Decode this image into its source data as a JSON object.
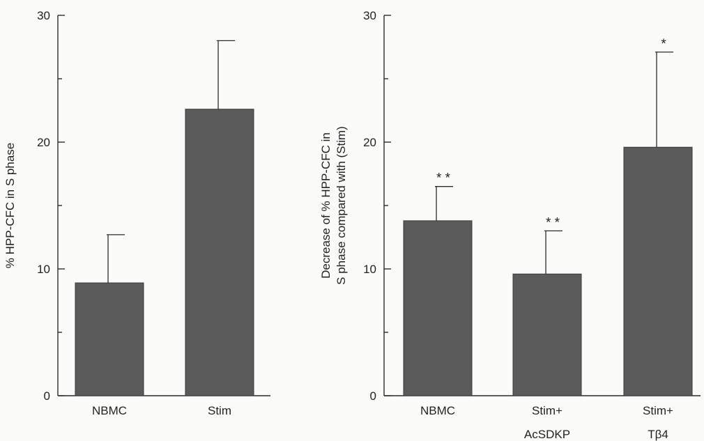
{
  "chart_data": [
    {
      "type": "bar",
      "categories": [
        [
          "NBMC"
        ],
        [
          "Stim"
        ]
      ],
      "values": [
        8.9,
        22.6
      ],
      "error": [
        3.8,
        5.4
      ],
      "significance": [
        "",
        ""
      ],
      "ylabel": "% HPP-CFC in S phase",
      "ylabel_lines": [
        "% HPP-CFC in S phase"
      ],
      "ylim": [
        0,
        30
      ],
      "yticks": [
        0,
        10,
        20,
        30
      ],
      "ytick_labels": [
        "0",
        "10",
        "20",
        "30"
      ],
      "grid": false,
      "bar_color": "#5b5b5b"
    },
    {
      "type": "bar",
      "categories": [
        [
          "NBMC"
        ],
        [
          "Stim+",
          "AcSDKP"
        ],
        [
          "Stim+",
          "Tβ4"
        ]
      ],
      "values": [
        13.8,
        9.6,
        19.6
      ],
      "error": [
        2.7,
        3.4,
        7.5
      ],
      "significance": [
        "**",
        "**",
        "*"
      ],
      "ylabel": "Decrease of % HPP-CFC in S phase compared with (Stim)",
      "ylabel_lines": [
        "Decrease of % HPP-CFC in",
        "S phase compared with (Stim)"
      ],
      "ylim": [
        0,
        30
      ],
      "yticks": [
        0,
        10,
        20,
        30
      ],
      "ytick_labels": [
        "0",
        "10",
        "20",
        "30"
      ],
      "grid": false,
      "bar_color": "#5b5b5b"
    }
  ]
}
